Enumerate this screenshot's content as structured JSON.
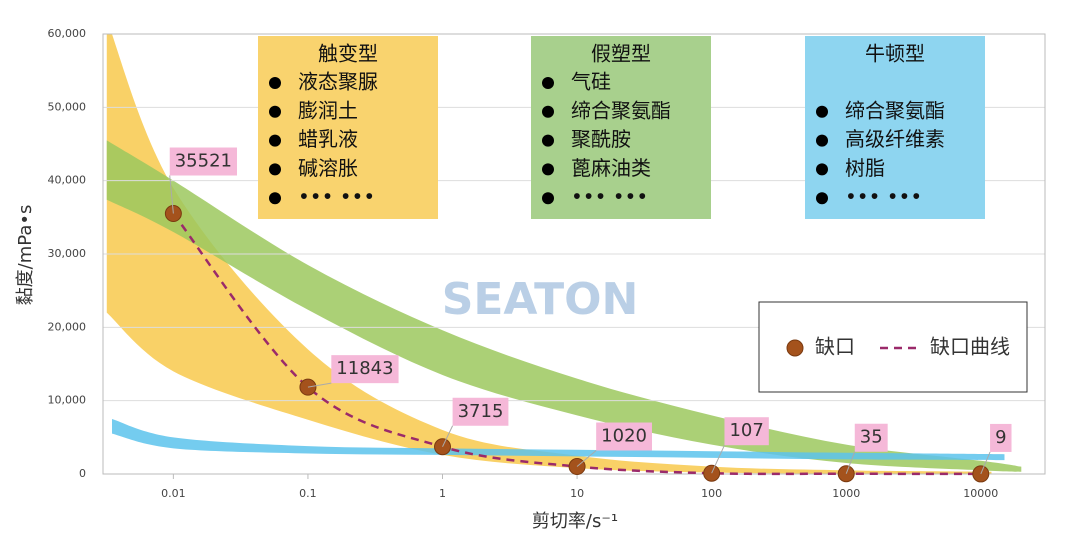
{
  "chart_data": {
    "type": "line",
    "xlabel": "剪切率/s⁻¹",
    "ylabel": "黏度/mPa•s",
    "watermark": "SEATON",
    "xscale": "log",
    "xlim": [
      0.003,
      30000
    ],
    "xticks": [
      0.01,
      0.1,
      1,
      10,
      100,
      1000,
      10000
    ],
    "ylim": [
      0,
      60000
    ],
    "yticks": [
      0,
      {
        "value": 10000,
        "label": "10,000"
      },
      {
        "value": 20000,
        "label": "20,000"
      },
      {
        "value": 30000,
        "label": "30,000"
      },
      {
        "value": 40000,
        "label": "40,000"
      },
      {
        "value": 50000,
        "label": "50,000"
      },
      {
        "value": 60000,
        "label": "60,000"
      }
    ],
    "grid": true,
    "legend": "right",
    "x": [
      0.01,
      0.1,
      1,
      10,
      100,
      1000,
      10000
    ],
    "series": [
      {
        "name": "缺口",
        "color": "#a4521c",
        "marker": true,
        "values": [
          35521,
          11843,
          3715,
          1020,
          107,
          35,
          9
        ]
      },
      {
        "name": "缺口曲线",
        "color": "#9b2a6a",
        "dashed": true,
        "values": [
          35521,
          11843,
          3715,
          1020,
          107,
          35,
          9
        ]
      }
    ],
    "bands": [
      {
        "color": "#f8c94c",
        "x": [
          0.0032,
          0.01,
          0.1,
          1,
          10,
          100,
          1000,
          12000
        ],
        "upper": [
          62000,
          39000,
          17000,
          6000,
          2500,
          1000,
          500,
          300
        ],
        "lower": [
          22000,
          14000,
          7400,
          2600,
          800,
          200,
          50,
          0
        ]
      },
      {
        "color": "#9cc85e",
        "x": [
          0.0032,
          0.01,
          0.1,
          1,
          10,
          100,
          1000,
          10000,
          20000
        ],
        "upper": [
          45500,
          40000,
          28500,
          19600,
          13000,
          8000,
          4000,
          1800,
          1000
        ],
        "lower": [
          37400,
          33000,
          22400,
          13500,
          8000,
          4000,
          1500,
          500,
          300
        ]
      },
      {
        "color": "#5cc3ec",
        "x": [
          0.0035,
          0.01,
          0.1,
          1,
          10,
          100,
          1000,
          15000
        ],
        "upper": [
          7500,
          5000,
          3800,
          3500,
          3300,
          3100,
          2900,
          2700
        ],
        "lower": [
          5500,
          3500,
          2800,
          2600,
          2400,
          2200,
          2000,
          1900
        ]
      }
    ],
    "annotations": [
      {
        "title": "触变型",
        "color": "#f9d36e",
        "items": [
          "液态聚脲",
          "膨润土",
          "蜡乳液",
          "碱溶胀",
          "••• •••"
        ]
      },
      {
        "title": "假塑型",
        "color": "#a8d08d",
        "items": [
          "气硅",
          "缔合聚氨酯",
          "聚酰胺",
          "蓖麻油类",
          "••• •••"
        ]
      },
      {
        "title": "牛顿型",
        "color": "#8ed5f0",
        "items": [
          "缔合聚氨酯",
          "高级纤维素",
          "树脂",
          "••• •••"
        ]
      }
    ]
  }
}
